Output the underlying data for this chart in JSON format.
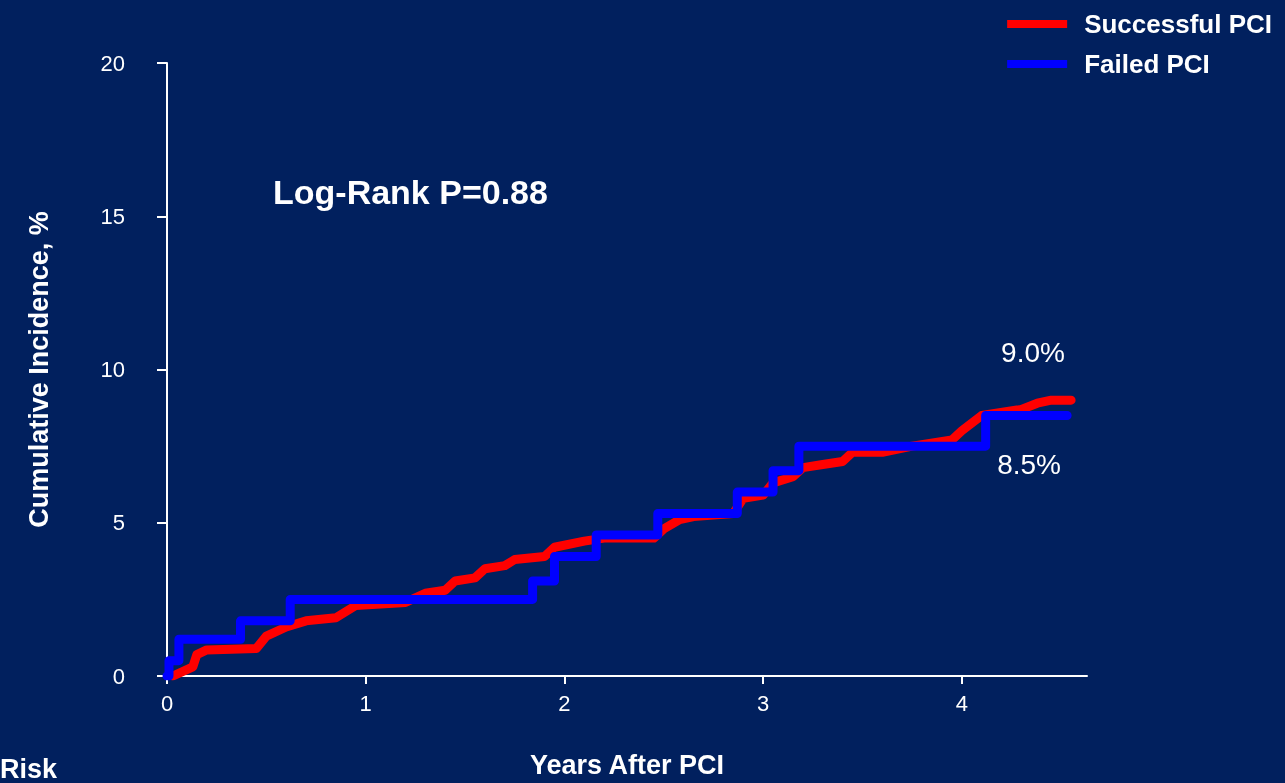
{
  "chart_data": {
    "type": "step",
    "xlabel": "Years After PCI",
    "ylabel": "Cumulative Incidence, %",
    "xlim": [
      0,
      4.63
    ],
    "xticks": [
      0,
      1,
      2,
      3,
      4
    ],
    "ylim": [
      0,
      20
    ],
    "yticks": [
      0,
      5,
      10,
      15,
      20
    ],
    "grid": false,
    "legend": "top right",
    "marker": "none",
    "line_style": "solid",
    "series": [
      {
        "name": "Successful PCI",
        "color": "#ff0000",
        "type": "line",
        "x": [
          0.03,
          0.13,
          0.15,
          0.2,
          0.45,
          0.5,
          0.6,
          0.7,
          0.85,
          0.95,
          1.2,
          1.3,
          1.4,
          1.45,
          1.55,
          1.6,
          1.7,
          1.75,
          1.9,
          1.95,
          2.1,
          2.2,
          2.45,
          2.5,
          2.58,
          2.65,
          2.85,
          2.9,
          3.0,
          3.05,
          3.15,
          3.2,
          3.3,
          3.4,
          3.45,
          3.6,
          3.75,
          3.95,
          4.0,
          4.1,
          4.3,
          4.38,
          4.45,
          4.55
        ],
        "values": [
          0,
          0.3,
          0.7,
          0.85,
          0.9,
          1.3,
          1.6,
          1.8,
          1.9,
          2.3,
          2.4,
          2.7,
          2.8,
          3.1,
          3.2,
          3.5,
          3.6,
          3.8,
          3.9,
          4.2,
          4.4,
          4.5,
          4.5,
          4.8,
          5.1,
          5.2,
          5.3,
          5.8,
          5.9,
          6.3,
          6.5,
          6.8,
          6.9,
          7.0,
          7.3,
          7.3,
          7.5,
          7.7,
          8.0,
          8.5,
          8.7,
          8.9,
          9.0,
          9.0
        ]
      },
      {
        "name": "Failed PCI",
        "color": "#0000ff",
        "x": [
          0,
          0.01,
          0.06,
          0.37,
          0.62,
          1.84,
          1.95,
          2.16,
          2.47,
          2.87,
          3.05,
          3.18,
          4.12,
          4.53
        ],
        "values": [
          0,
          0.5,
          1.2,
          1.8,
          2.5,
          3.1,
          3.9,
          4.6,
          5.3,
          6.0,
          6.7,
          7.5,
          8.5,
          8.5
        ]
      }
    ],
    "annotations": [
      "Log-Rank P=0.88",
      {
        "text": "9.0%",
        "x": 4.55,
        "y": 9.0
      },
      {
        "text": "8.5%",
        "x": 4.53,
        "y": 8.5
      },
      "Risk"
    ]
  }
}
